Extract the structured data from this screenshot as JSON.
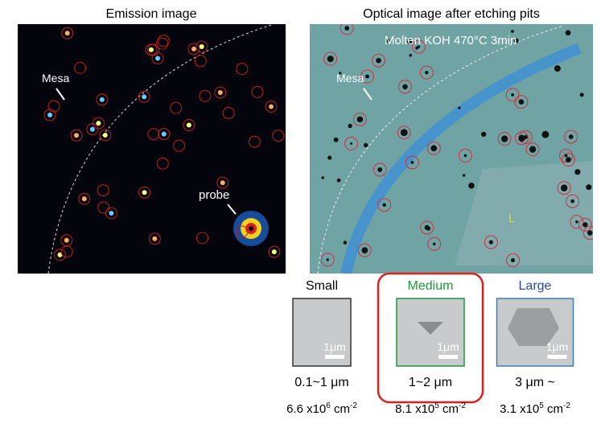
{
  "panels": [
    {
      "title": "Emission image",
      "labels": [
        "Mesa",
        "probe"
      ]
    },
    {
      "title": "Optical image after etching pits",
      "annotation": "Molten  KOH  470°C  3min",
      "labels": [
        "Mesa",
        "L"
      ]
    }
  ],
  "pits": [
    {
      "name": "Small",
      "scale": "1μm",
      "size": "0.1~1 μm",
      "density": {
        "base": "6.6 x10",
        "exp": "6",
        "unit": " cm",
        "unit_exp": "-2"
      }
    },
    {
      "name": "Medium",
      "scale": "1μm",
      "size": "1~2 μm",
      "density": {
        "base": "8.1 x10",
        "exp": "5",
        "unit": " cm",
        "unit_exp": "-2"
      }
    },
    {
      "name": "Large",
      "scale": "1μm",
      "size": "3 μm ~",
      "density": {
        "base": "3.1 x10",
        "exp": "5",
        "unit": " cm",
        "unit_exp": "-2"
      }
    }
  ]
}
